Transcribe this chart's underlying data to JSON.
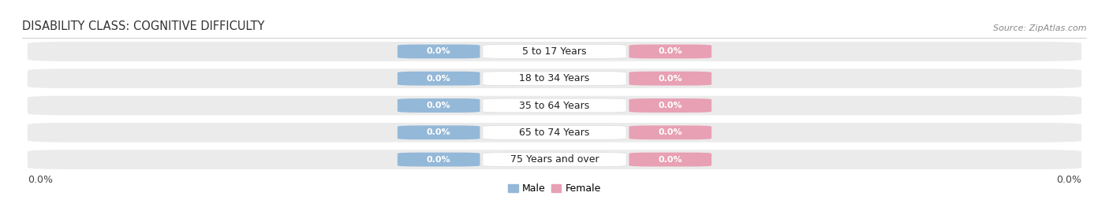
{
  "title": "DISABILITY CLASS: COGNITIVE DIFFICULTY",
  "source_text": "Source: ZipAtlas.com",
  "age_groups": [
    "5 to 17 Years",
    "18 to 34 Years",
    "35 to 64 Years",
    "65 to 74 Years",
    "75 Years and over"
  ],
  "male_values": [
    0.0,
    0.0,
    0.0,
    0.0,
    0.0
  ],
  "female_values": [
    0.0,
    0.0,
    0.0,
    0.0,
    0.0
  ],
  "male_color": "#94b8d8",
  "female_color": "#e8a0b4",
  "row_bg_color": "#ebebeb",
  "label_bg_color": "#ffffff",
  "xlim_left": "0.0%",
  "xlim_right": "0.0%",
  "legend_male": "Male",
  "legend_female": "Female",
  "title_fontsize": 10.5,
  "badge_fontsize": 8,
  "label_fontsize": 9,
  "tick_fontsize": 9,
  "source_fontsize": 8
}
